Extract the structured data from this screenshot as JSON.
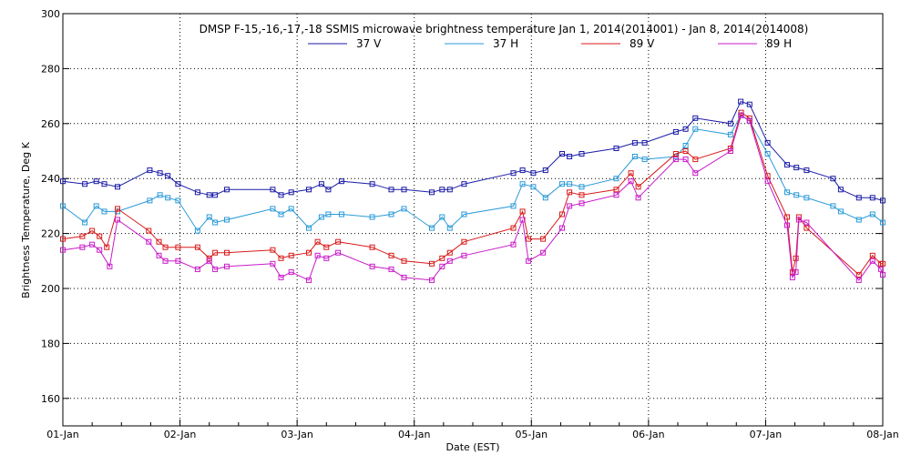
{
  "chart_data": {
    "type": "line",
    "title": "DMSP F-15,-16,-17,-18 SSMIS microwave brightness temperature Jan  1, 2014(2014001) - Jan  8, 2014(2014008)",
    "xlabel": "Date (EST)",
    "ylabel": "Brightness Temperature, Deg K",
    "xlim": [
      "2014-01-01 00:00",
      "2014-01-08 00:00"
    ],
    "ylim": [
      150,
      300
    ],
    "yticks": [
      160,
      180,
      200,
      220,
      240,
      260,
      280,
      300
    ],
    "xtick_labels": [
      "01-Jan",
      "02-Jan",
      "03-Jan",
      "04-Jan",
      "05-Jan",
      "06-Jan",
      "07-Jan",
      "08-Jan"
    ],
    "grid": true,
    "legend_position": "top-center",
    "series": [
      {
        "name": "37 V",
        "color": "#1a1aa6",
        "x": [
          "2014-01-01 00:00",
          "2014-01-01 04:30",
          "2014-01-01 06:51",
          "2014-01-01 08:30",
          "2014-01-01 11:12",
          "2014-01-01 17:48",
          "2014-01-01 19:54",
          "2014-01-01 21:30",
          "2014-01-01 23:36",
          "2014-01-02 03:36",
          "2014-01-02 06:00",
          "2014-01-02 07:12",
          "2014-01-02 09:36",
          "2014-01-02 19:00",
          "2014-01-02 20:42",
          "2014-01-02 22:48",
          "2014-01-03 02:24",
          "2014-01-03 05:00",
          "2014-01-03 06:24",
          "2014-01-03 09:06",
          "2014-01-03 15:24",
          "2014-01-03 19:18",
          "2014-01-03 21:54",
          "2014-01-04 03:36",
          "2014-01-04 05:42",
          "2014-01-04 07:18",
          "2014-01-04 10:12",
          "2014-01-04 20:18",
          "2014-01-04 22:12",
          "2014-01-05 00:24",
          "2014-01-05 02:54",
          "2014-01-05 06:18",
          "2014-01-05 07:48",
          "2014-01-05 10:18",
          "2014-01-05 17:24",
          "2014-01-05 21:12",
          "2014-01-05 23:12",
          "2014-01-06 05:36",
          "2014-01-06 07:36",
          "2014-01-06 09:36",
          "2014-01-06 16:48",
          "2014-01-06 18:54",
          "2014-01-06 20:42",
          "2014-01-07 00:24",
          "2014-01-07 04:24",
          "2014-01-07 06:18",
          "2014-01-07 08:24",
          "2014-01-07 13:48",
          "2014-01-07 15:24",
          "2014-01-07 19:06",
          "2014-01-07 21:54",
          "2014-01-08 00:00"
        ],
        "y": [
          239,
          238,
          239,
          238,
          237,
          243,
          242,
          241,
          238,
          235,
          234,
          234,
          236,
          236,
          234,
          235,
          236,
          238,
          236,
          239,
          238,
          236,
          236,
          235,
          236,
          236,
          238,
          242,
          243,
          242,
          243,
          249,
          248,
          249,
          251,
          253,
          253,
          257,
          258,
          262,
          260,
          268,
          267,
          253,
          245,
          244,
          243,
          240,
          236,
          233,
          233,
          232
        ]
      },
      {
        "name": "37 H",
        "color": "#2a9ad8",
        "x": [
          "2014-01-01 00:00",
          "2014-01-01 04:30",
          "2014-01-01 06:51",
          "2014-01-01 08:30",
          "2014-01-01 11:12",
          "2014-01-01 17:48",
          "2014-01-01 19:54",
          "2014-01-01 21:30",
          "2014-01-01 23:36",
          "2014-01-02 03:36",
          "2014-01-02 06:00",
          "2014-01-02 07:12",
          "2014-01-02 09:36",
          "2014-01-02 19:00",
          "2014-01-02 20:42",
          "2014-01-02 22:48",
          "2014-01-03 02:24",
          "2014-01-03 05:00",
          "2014-01-03 06:24",
          "2014-01-03 09:06",
          "2014-01-03 15:24",
          "2014-01-03 19:18",
          "2014-01-03 21:54",
          "2014-01-04 03:36",
          "2014-01-04 05:42",
          "2014-01-04 07:18",
          "2014-01-04 10:12",
          "2014-01-04 20:18",
          "2014-01-04 22:12",
          "2014-01-05 00:24",
          "2014-01-05 02:54",
          "2014-01-05 06:18",
          "2014-01-05 07:48",
          "2014-01-05 10:18",
          "2014-01-05 17:24",
          "2014-01-05 21:12",
          "2014-01-05 23:12",
          "2014-01-06 05:36",
          "2014-01-06 07:36",
          "2014-01-06 09:36",
          "2014-01-06 16:48",
          "2014-01-06 18:54",
          "2014-01-06 20:42",
          "2014-01-07 00:24",
          "2014-01-07 04:24",
          "2014-01-07 06:18",
          "2014-01-07 08:24",
          "2014-01-07 13:48",
          "2014-01-07 15:24",
          "2014-01-07 19:06",
          "2014-01-07 21:54",
          "2014-01-08 00:00"
        ],
        "y": [
          230,
          224,
          230,
          228,
          228,
          232,
          234,
          233,
          232,
          221,
          226,
          224,
          225,
          229,
          227,
          229,
          222,
          226,
          227,
          227,
          226,
          227,
          229,
          222,
          226,
          222,
          227,
          230,
          238,
          237,
          233,
          238,
          238,
          237,
          240,
          248,
          247,
          248,
          252,
          258,
          256,
          263,
          261,
          249,
          235,
          234,
          233,
          230,
          228,
          225,
          227,
          224
        ]
      },
      {
        "name": "89 V",
        "color": "#d81a1a",
        "x": [
          "2014-01-01 00:00",
          "2014-01-01 04:00",
          "2014-01-01 06:00",
          "2014-01-01 07:30",
          "2014-01-01 09:00",
          "2014-01-01 11:12",
          "2014-01-01 17:36",
          "2014-01-01 19:42",
          "2014-01-01 21:00",
          "2014-01-01 23:36",
          "2014-01-02 03:36",
          "2014-01-02 06:00",
          "2014-01-02 07:12",
          "2014-01-02 09:36",
          "2014-01-02 19:00",
          "2014-01-02 20:42",
          "2014-01-02 22:48",
          "2014-01-03 02:24",
          "2014-01-03 04:12",
          "2014-01-03 06:00",
          "2014-01-03 08:24",
          "2014-01-03 15:24",
          "2014-01-03 19:18",
          "2014-01-03 21:54",
          "2014-01-04 03:36",
          "2014-01-04 05:42",
          "2014-01-04 07:18",
          "2014-01-04 10:12",
          "2014-01-04 20:18",
          "2014-01-04 22:12",
          "2014-01-04 23:24",
          "2014-01-05 02:24",
          "2014-01-05 06:18",
          "2014-01-05 07:48",
          "2014-01-05 10:18",
          "2014-01-05 17:24",
          "2014-01-05 20:24",
          "2014-01-05 21:54",
          "2014-01-06 05:36",
          "2014-01-06 07:36",
          "2014-01-06 09:36",
          "2014-01-06 16:48",
          "2014-01-06 19:00",
          "2014-01-06 20:42",
          "2014-01-07 00:24",
          "2014-01-07 04:24",
          "2014-01-07 05:30",
          "2014-01-07 06:12",
          "2014-01-07 06:48",
          "2014-01-07 08:24",
          "2014-01-07 19:06",
          "2014-01-07 21:54",
          "2014-01-07 23:36",
          "2014-01-08 00:00"
        ],
        "y": [
          218,
          219,
          221,
          219,
          215,
          229,
          221,
          217,
          215,
          215,
          215,
          211,
          213,
          213,
          214,
          211,
          212,
          213,
          217,
          215,
          217,
          215,
          212,
          210,
          209,
          211,
          213,
          217,
          222,
          228,
          218,
          218,
          227,
          235,
          234,
          236,
          242,
          237,
          249,
          250,
          247,
          251,
          264,
          262,
          241,
          226,
          206,
          211,
          226,
          222,
          205,
          212,
          209,
          209
        ]
      },
      {
        "name": "89 H",
        "color": "#c81ac8",
        "x": [
          "2014-01-01 00:00",
          "2014-01-01 04:00",
          "2014-01-01 06:00",
          "2014-01-01 07:30",
          "2014-01-01 09:36",
          "2014-01-01 11:12",
          "2014-01-01 17:36",
          "2014-01-01 19:42",
          "2014-01-01 21:00",
          "2014-01-01 23:36",
          "2014-01-02 03:36",
          "2014-01-02 06:00",
          "2014-01-02 07:12",
          "2014-01-02 09:36",
          "2014-01-02 19:00",
          "2014-01-02 20:42",
          "2014-01-02 22:48",
          "2014-01-03 02:24",
          "2014-01-03 04:12",
          "2014-01-03 06:00",
          "2014-01-03 08:24",
          "2014-01-03 15:24",
          "2014-01-03 19:18",
          "2014-01-03 21:54",
          "2014-01-04 03:36",
          "2014-01-04 05:42",
          "2014-01-04 07:18",
          "2014-01-04 10:12",
          "2014-01-04 20:18",
          "2014-01-04 22:12",
          "2014-01-04 23:24",
          "2014-01-05 02:24",
          "2014-01-05 06:18",
          "2014-01-05 07:48",
          "2014-01-05 10:18",
          "2014-01-05 17:24",
          "2014-01-05 20:24",
          "2014-01-05 21:54",
          "2014-01-06 05:36",
          "2014-01-06 07:36",
          "2014-01-06 09:36",
          "2014-01-06 16:48",
          "2014-01-06 19:00",
          "2014-01-06 20:42",
          "2014-01-07 00:24",
          "2014-01-07 04:24",
          "2014-01-07 05:30",
          "2014-01-07 06:12",
          "2014-01-07 06:48",
          "2014-01-07 08:24",
          "2014-01-07 19:06",
          "2014-01-07 21:54",
          "2014-01-07 23:36",
          "2014-01-08 00:00"
        ],
        "y": [
          214,
          215,
          216,
          214,
          208,
          225,
          217,
          212,
          210,
          210,
          207,
          210,
          207,
          208,
          209,
          204,
          206,
          203,
          212,
          211,
          213,
          208,
          207,
          204,
          203,
          208,
          210,
          212,
          216,
          225,
          210,
          213,
          222,
          230,
          231,
          234,
          239,
          233,
          247,
          247,
          242,
          250,
          263,
          261,
          239,
          223,
          204,
          206,
          225,
          224,
          203,
          210,
          207,
          205
        ]
      }
    ]
  }
}
